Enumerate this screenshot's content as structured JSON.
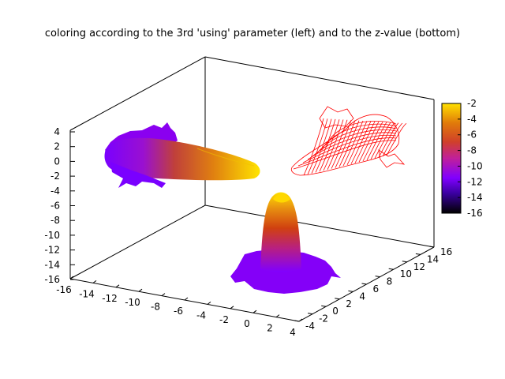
{
  "chart_data": {
    "type": "surface3d",
    "title": "coloring according to the 3rd 'using' parameter (left) and to the z-value (bottom)",
    "grid": false,
    "legend": "none",
    "axes": {
      "x": {
        "range": [
          -16,
          4
        ],
        "ticks": [
          "-16",
          "-14",
          "-12",
          "-10",
          "-8",
          "-6",
          "-4",
          "-2",
          "0",
          "2",
          "4"
        ]
      },
      "y": {
        "range": [
          -4,
          16
        ],
        "ticks": [
          "-4",
          "-2",
          "0",
          "2",
          "4",
          "6",
          "8",
          "10",
          "12",
          "14",
          "16"
        ]
      },
      "z": {
        "range": [
          -16,
          4
        ],
        "ticks": [
          "4",
          "2",
          "0",
          "-2",
          "-4",
          "-6",
          "-8",
          "-10",
          "-12",
          "-14",
          "-16"
        ]
      }
    },
    "colorbar": {
      "range": [
        -16,
        -2
      ],
      "ticks": [
        "-2",
        "-4",
        "-6",
        "-8",
        "-10",
        "-12",
        "-14",
        "-16"
      ],
      "palette": [
        "#000000",
        "#3a00a0",
        "#8000ff",
        "#c0209a",
        "#d0402a",
        "#e07a0a",
        "#ffe000"
      ]
    },
    "surfaces": [
      {
        "label": "left",
        "shape": "horizontal cone",
        "coloring": "3rd using parameter",
        "x": [
          -16,
          -6
        ],
        "z_range": [
          -2,
          2
        ]
      },
      {
        "label": "back-right",
        "shape": "mesh",
        "coloring": "red",
        "color": "#ff0000"
      },
      {
        "label": "bottom",
        "shape": "radial peak",
        "coloring": "z-value",
        "z_range": [
          -16,
          -2
        ]
      }
    ]
  }
}
